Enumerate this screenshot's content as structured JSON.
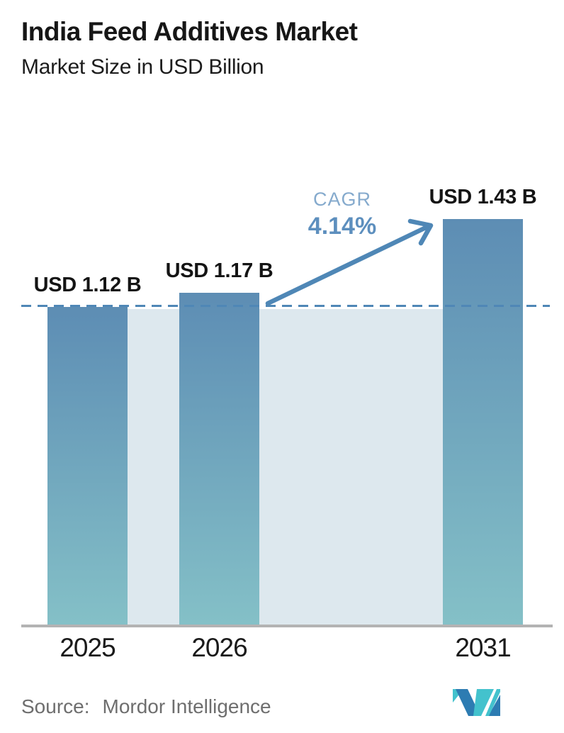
{
  "header": {
    "title": "India Feed Additives Market",
    "subtitle": "Market Size in USD Billion"
  },
  "chart_data": {
    "type": "bar",
    "title": "India Feed Additives Market",
    "subtitle": "Market Size in USD Billion",
    "unit": "USD Billion",
    "categories": [
      "2025",
      "2026",
      "2031"
    ],
    "values": [
      1.12,
      1.17,
      1.43
    ],
    "bar_labels": [
      "USD 1.12 B",
      "USD 1.17 B",
      "USD 1.43 B"
    ],
    "ylim": [
      0,
      2.2
    ],
    "grid": false,
    "legend": "none",
    "baseline": {
      "value": 1.12,
      "style": "dashed"
    },
    "annotations": {
      "cagr_label": "CAGR",
      "cagr_value": "4.14%"
    },
    "colors": {
      "bar_gradient_top": "#5d8db4",
      "bar_gradient_bottom": "#84c0c7",
      "baseline_band": "#dde8ee",
      "accent_blue": "#4f87b6",
      "cagr_label": "#85aacd",
      "cagr_value": "#5d8fbe",
      "axis_line": "#b3b3b3",
      "source_text": "#6e6e6e",
      "logo_teal": "#43c2cd",
      "logo_blue": "#2d7cb2"
    }
  },
  "footer": {
    "source_label": "Source:",
    "source_name": "Mordor Intelligence",
    "logo_icon": "mordor-intelligence-logo"
  }
}
